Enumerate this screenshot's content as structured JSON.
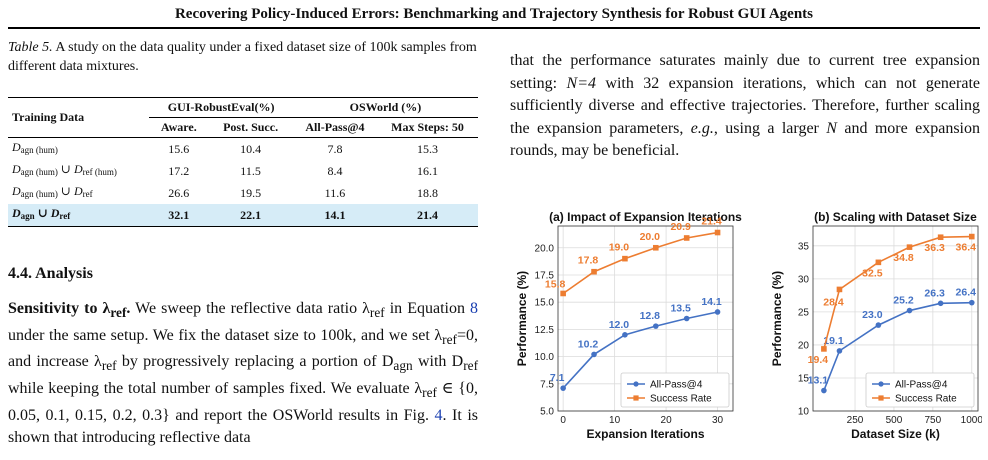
{
  "running_head": "Recovering Policy-Induced Errors: Benchmarking and Trajectory Synthesis for Robust GUI Agents",
  "caption": {
    "label": "Table 5.",
    "text": "A study on the data quality under a fixed dataset size of 100k samples from different data mixtures."
  },
  "table": {
    "row_header": "Training Data",
    "group1": "GUI-RobustEval(%)",
    "group2": "OSWorld (%)",
    "columns": [
      "Aware.",
      "Post. Succ.",
      "All-Pass@4",
      "Max Steps: 50"
    ],
    "rows": [
      {
        "label": "D",
        "sub": "agn (hum)",
        "label2": "",
        "sub2": "",
        "label3": "",
        "sub3": "",
        "values": [
          "15.6",
          "10.4",
          "7.8",
          "15.3"
        ]
      },
      {
        "label": "D",
        "sub": "agn (hum)",
        "label2": " ∪ D",
        "sub2": "ref (hum)",
        "label3": "",
        "sub3": "",
        "values": [
          "17.2",
          "11.5",
          "8.4",
          "16.1"
        ]
      },
      {
        "label": "D",
        "sub": "agn (hum)",
        "label2": " ∪ D",
        "sub2": "ref",
        "label3": "",
        "sub3": "",
        "values": [
          "26.6",
          "19.5",
          "11.6",
          "18.8"
        ]
      },
      {
        "label": "D",
        "sub": "agn",
        "label2": " ∪ D",
        "sub2": "ref",
        "label3": "",
        "sub3": "",
        "values": [
          "32.1",
          "22.1",
          "14.1",
          "21.4"
        ]
      }
    ]
  },
  "section_heading": "4.4. Analysis",
  "left_paragraph": {
    "runin": "Sensitivity to λ",
    "runin_sub": "ref",
    "runin_end": ".",
    "text1": "  We sweep the reflective data ratio λ",
    "text1_sub": "ref",
    "text2": " in Equation ",
    "eq_ref": "8",
    "text3": " under the same setup. We fix the dataset size to 100k, and we set λ",
    "text3_sub": "ref",
    "text4": "=0, and increase λ",
    "text4_sub": "ref",
    "text5": " by progressively replacing a portion of D",
    "text5_sub": "agn",
    "text6": " with D",
    "text6_sub": "ref",
    "text7": " while keeping the total number of samples fixed. We evaluate λ",
    "text7_sub": "ref",
    "text8": " ∈ {0, 0.05, 0.1, 0.15, 0.2, 0.3} and report the OSWorld results in Fig. ",
    "fig_ref": "4",
    "text9": ". It is shown that introducing reflective data"
  },
  "right_paragraph": {
    "text1": "that the performance saturates mainly due to current tree expansion setting: ",
    "n_eq": "N=4",
    "text2": " with 32 expansion iterations, which can not generate sufficiently diverse and effective trajectories. Therefore, further scaling the expansion parameters, ",
    "eg": "e.g.",
    "text3": ", using a larger ",
    "n": "N",
    "text4": " and more expansion rounds, may be beneficial."
  },
  "chart_data": [
    {
      "type": "line",
      "title": "(a) Impact of Expansion Iterations",
      "xlabel": "Expansion Iterations",
      "ylabel": "Performance (%)",
      "xlim": [
        -1,
        33
      ],
      "ylim": [
        5.0,
        22.0
      ],
      "xticks": [
        0,
        10,
        20,
        30
      ],
      "yticks": [
        5.0,
        7.5,
        10.0,
        12.5,
        15.0,
        17.5,
        20.0
      ],
      "grid": true,
      "legend": "bottom-right",
      "x": [
        0,
        6,
        12,
        18,
        24,
        30
      ],
      "series": [
        {
          "name": "All-Pass@4",
          "color": "#4472c4",
          "marker": "circle",
          "values": [
            7.1,
            10.2,
            12.0,
            12.8,
            13.5,
            14.1
          ]
        },
        {
          "name": "Success Rate",
          "color": "#ed7d31",
          "marker": "square",
          "values": [
            15.8,
            17.8,
            19.0,
            20.0,
            20.9,
            21.4
          ]
        }
      ]
    },
    {
      "type": "line",
      "title": "(b) Scaling with Dataset Size",
      "xlabel": "Dataset Size (k)",
      "ylabel": "Performance (%)",
      "xlim": [
        -20,
        1040
      ],
      "ylim": [
        10,
        38
      ],
      "xticks": [
        250,
        500,
        750,
        1000
      ],
      "yticks": [
        10,
        15,
        20,
        25,
        30,
        35
      ],
      "grid": true,
      "legend": "bottom-right",
      "x": [
        50,
        150,
        400,
        600,
        800,
        1000
      ],
      "series": [
        {
          "name": "All-Pass@4",
          "color": "#4472c4",
          "marker": "circle",
          "values": [
            13.1,
            19.1,
            23.0,
            25.2,
            26.3,
            26.4
          ]
        },
        {
          "name": "Success Rate",
          "color": "#ed7d31",
          "marker": "square",
          "values": [
            19.4,
            28.4,
            32.5,
            34.8,
            36.3,
            36.4
          ]
        }
      ]
    }
  ]
}
